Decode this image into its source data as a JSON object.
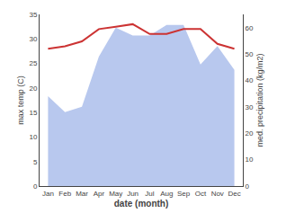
{
  "chart_data": {
    "type": "line",
    "categories": [
      "Jan",
      "Feb",
      "Mar",
      "Apr",
      "May",
      "Jun",
      "Jul",
      "Aug",
      "Sep",
      "Oct",
      "Nov",
      "Dec"
    ],
    "xlabel": "date (month)",
    "ylabel": "max temp (C)",
    "y2label": "med. precipitation (kg/m2)",
    "series": [
      {
        "type": "area",
        "axis": "y2",
        "color": "#b8c8ee",
        "values": [
          34,
          28,
          30,
          49,
          60,
          57,
          57,
          61,
          61,
          46,
          53,
          44
        ]
      },
      {
        "type": "line",
        "color": "#cc3333",
        "values": [
          28,
          28.5,
          29.5,
          32,
          32.5,
          33,
          31,
          31,
          32,
          32,
          29,
          28
        ]
      }
    ],
    "ylim": [
      0,
      35
    ],
    "yticks": [
      0,
      5,
      10,
      15,
      20,
      25,
      30,
      35
    ],
    "y2lim": [
      0,
      65
    ],
    "y2ticks": [
      0,
      10,
      20,
      30,
      40,
      50,
      60
    ],
    "grid": false
  }
}
